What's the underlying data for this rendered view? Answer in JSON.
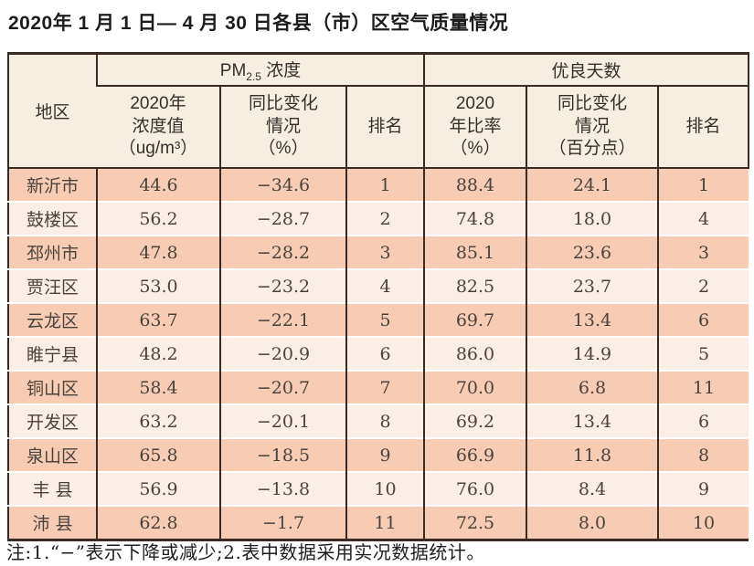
{
  "title": "2020年 1 月 1 日— 4 月 30 日各县（市）区空气质量情况",
  "footnote": "注:1.“−”表示下降或减少;2.表中数据采用实况数据统计。",
  "colors": {
    "row_odd_bg": "#f8ccb3",
    "row_even_bg": "#fbeee7",
    "header_bg": "#f5eee1",
    "border": "#3a2a23"
  },
  "chart_data": {
    "type": "table",
    "title": "2020年 1 月 1 日— 4 月 30 日各县（市）区空气质量情况",
    "header": {
      "region": "地区",
      "pm25_group": {
        "prefix": "PM",
        "sub": "2.5",
        "suffix": " 浓度"
      },
      "days_group": "优良天数",
      "sub_headers": {
        "pm25_value": [
          "2020年",
          "浓度值",
          "（ug/m³）"
        ],
        "pm25_change": [
          "同比变化",
          "情况",
          "（%）"
        ],
        "pm25_rank": "排名",
        "days_ratio": [
          "2020",
          "年比率",
          "（%）"
        ],
        "days_change": [
          "同比变化",
          "情况",
          "（百分点）"
        ],
        "days_rank": "排名"
      }
    },
    "row_fields": [
      "region",
      "pm25_value",
      "pm25_change",
      "pm25_rank",
      "days_ratio",
      "days_change",
      "days_rank"
    ],
    "rows": [
      {
        "region": "新沂市",
        "pm25_value": "44.6",
        "pm25_change": "−34.6",
        "pm25_rank": "1",
        "days_ratio": "88.4",
        "days_change": "24.1",
        "days_rank": "1"
      },
      {
        "region": "鼓楼区",
        "pm25_value": "56.2",
        "pm25_change": "−28.7",
        "pm25_rank": "2",
        "days_ratio": "74.8",
        "days_change": "18.0",
        "days_rank": "4"
      },
      {
        "region": "邳州市",
        "pm25_value": "47.8",
        "pm25_change": "−28.2",
        "pm25_rank": "3",
        "days_ratio": "85.1",
        "days_change": "23.6",
        "days_rank": "3"
      },
      {
        "region": "贾汪区",
        "pm25_value": "53.0",
        "pm25_change": "−23.2",
        "pm25_rank": "4",
        "days_ratio": "82.5",
        "days_change": "23.7",
        "days_rank": "2"
      },
      {
        "region": "云龙区",
        "pm25_value": "63.7",
        "pm25_change": "−22.1",
        "pm25_rank": "5",
        "days_ratio": "69.7",
        "days_change": "13.4",
        "days_rank": "6"
      },
      {
        "region": "睢宁县",
        "pm25_value": "48.2",
        "pm25_change": "−20.9",
        "pm25_rank": "6",
        "days_ratio": "86.0",
        "days_change": "14.9",
        "days_rank": "5"
      },
      {
        "region": "铜山区",
        "pm25_value": "58.4",
        "pm25_change": "−20.7",
        "pm25_rank": "7",
        "days_ratio": "70.0",
        "days_change": "6.8",
        "days_rank": "11"
      },
      {
        "region": "开发区",
        "pm25_value": "63.2",
        "pm25_change": "−20.1",
        "pm25_rank": "8",
        "days_ratio": "69.2",
        "days_change": "13.4",
        "days_rank": "6"
      },
      {
        "region": "泉山区",
        "pm25_value": "65.8",
        "pm25_change": "−18.5",
        "pm25_rank": "9",
        "days_ratio": "66.9",
        "days_change": "11.8",
        "days_rank": "8"
      },
      {
        "region": "丰 县",
        "pm25_value": "56.9",
        "pm25_change": "−13.8",
        "pm25_rank": "10",
        "days_ratio": "76.0",
        "days_change": "8.4",
        "days_rank": "9"
      },
      {
        "region": "沛 县",
        "pm25_value": "62.8",
        "pm25_change": "−1.7",
        "pm25_rank": "11",
        "days_ratio": "72.5",
        "days_change": "8.0",
        "days_rank": "10"
      }
    ]
  }
}
